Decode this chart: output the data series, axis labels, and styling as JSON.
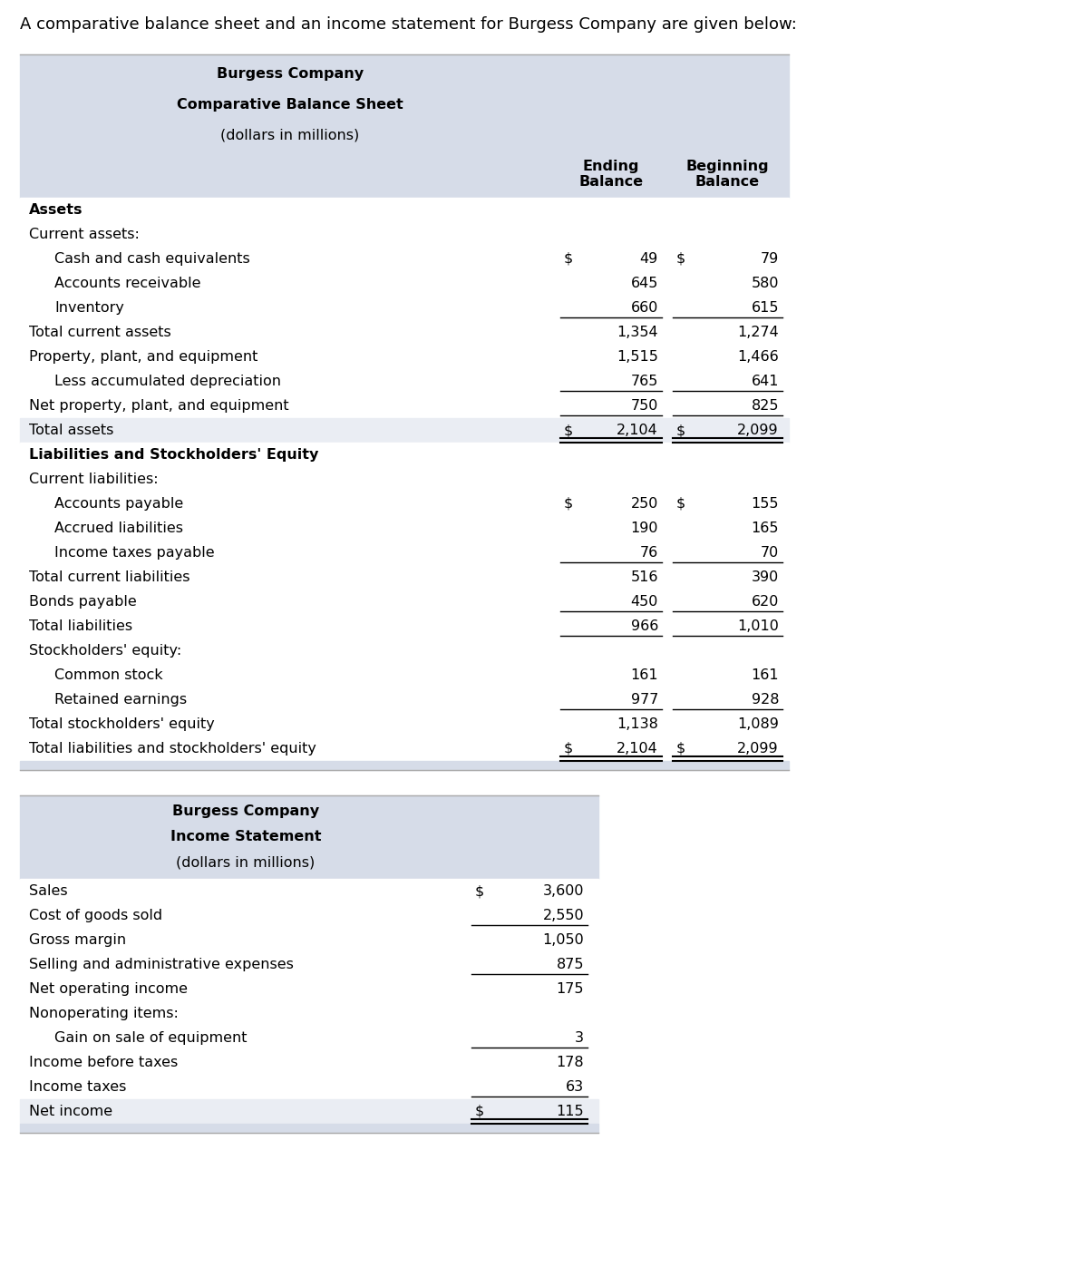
{
  "intro_text": "A comparative balance sheet and an income statement for Burgess Company are given below:",
  "bg_color": "#ffffff",
  "table_bg_color": "#d6dce8",
  "row_bg_light": "#eaedf3",
  "row_bg_white": "#ffffff",
  "bs_title_lines": [
    "Burgess Company",
    "Comparative Balance Sheet",
    "(dollars in millions)"
  ],
  "is_title_lines": [
    "Burgess Company",
    "Income Statement",
    "(dollars in millions)"
  ],
  "bs_rows": [
    {
      "label": "Assets",
      "ending": "",
      "beginning": "",
      "indent": 0,
      "bold": true,
      "bg": "white",
      "underline_after": false,
      "dollar_end": false,
      "dollar_beg": false
    },
    {
      "label": "Current assets:",
      "ending": "",
      "beginning": "",
      "indent": 0,
      "bold": false,
      "bg": "white",
      "underline_after": false,
      "dollar_end": false,
      "dollar_beg": false
    },
    {
      "label": "Cash and cash equivalents",
      "ending": "49",
      "beginning": "79",
      "indent": 1,
      "bold": false,
      "bg": "white",
      "underline_after": false,
      "dollar_end": true,
      "dollar_beg": true
    },
    {
      "label": "Accounts receivable",
      "ending": "645",
      "beginning": "580",
      "indent": 1,
      "bold": false,
      "bg": "white",
      "underline_after": false,
      "dollar_end": false,
      "dollar_beg": false
    },
    {
      "label": "Inventory",
      "ending": "660",
      "beginning": "615",
      "indent": 1,
      "bold": false,
      "bg": "white",
      "underline_after": true,
      "dollar_end": false,
      "dollar_beg": false
    },
    {
      "label": "Total current assets",
      "ending": "1,354",
      "beginning": "1,274",
      "indent": 0,
      "bold": false,
      "bg": "white",
      "underline_after": false,
      "dollar_end": false,
      "dollar_beg": false
    },
    {
      "label": "Property, plant, and equipment",
      "ending": "1,515",
      "beginning": "1,466",
      "indent": 0,
      "bold": false,
      "bg": "white",
      "underline_after": false,
      "dollar_end": false,
      "dollar_beg": false
    },
    {
      "label": "Less accumulated depreciation",
      "ending": "765",
      "beginning": "641",
      "indent": 1,
      "bold": false,
      "bg": "white",
      "underline_after": true,
      "dollar_end": false,
      "dollar_beg": false
    },
    {
      "label": "Net property, plant, and equipment",
      "ending": "750",
      "beginning": "825",
      "indent": 0,
      "bold": false,
      "bg": "white",
      "underline_after": true,
      "dollar_end": false,
      "dollar_beg": false
    },
    {
      "label": "Total assets",
      "ending": "$ 2,104",
      "beginning": "$ 2,099",
      "indent": 0,
      "bold": false,
      "bg": "light",
      "underline_after": false,
      "dollar_end": false,
      "dollar_beg": false,
      "double_under": true
    },
    {
      "label": "Liabilities and Stockholders' Equity",
      "ending": "",
      "beginning": "",
      "indent": 0,
      "bold": true,
      "bg": "white",
      "underline_after": false,
      "dollar_end": false,
      "dollar_beg": false
    },
    {
      "label": "Current liabilities:",
      "ending": "",
      "beginning": "",
      "indent": 0,
      "bold": false,
      "bg": "white",
      "underline_after": false,
      "dollar_end": false,
      "dollar_beg": false
    },
    {
      "label": "Accounts payable",
      "ending": "250",
      "beginning": "155",
      "indent": 1,
      "bold": false,
      "bg": "white",
      "underline_after": false,
      "dollar_end": true,
      "dollar_beg": true
    },
    {
      "label": "Accrued liabilities",
      "ending": "190",
      "beginning": "165",
      "indent": 1,
      "bold": false,
      "bg": "white",
      "underline_after": false,
      "dollar_end": false,
      "dollar_beg": false
    },
    {
      "label": "Income taxes payable",
      "ending": "76",
      "beginning": "70",
      "indent": 1,
      "bold": false,
      "bg": "white",
      "underline_after": true,
      "dollar_end": false,
      "dollar_beg": false
    },
    {
      "label": "Total current liabilities",
      "ending": "516",
      "beginning": "390",
      "indent": 0,
      "bold": false,
      "bg": "white",
      "underline_after": false,
      "dollar_end": false,
      "dollar_beg": false
    },
    {
      "label": "Bonds payable",
      "ending": "450",
      "beginning": "620",
      "indent": 0,
      "bold": false,
      "bg": "white",
      "underline_after": true,
      "dollar_end": false,
      "dollar_beg": false
    },
    {
      "label": "Total liabilities",
      "ending": "966",
      "beginning": "1,010",
      "indent": 0,
      "bold": false,
      "bg": "white",
      "underline_after": true,
      "dollar_end": false,
      "dollar_beg": false
    },
    {
      "label": "Stockholders' equity:",
      "ending": "",
      "beginning": "",
      "indent": 0,
      "bold": false,
      "bg": "white",
      "underline_after": false,
      "dollar_end": false,
      "dollar_beg": false
    },
    {
      "label": "Common stock",
      "ending": "161",
      "beginning": "161",
      "indent": 1,
      "bold": false,
      "bg": "white",
      "underline_after": false,
      "dollar_end": false,
      "dollar_beg": false
    },
    {
      "label": "Retained earnings",
      "ending": "977",
      "beginning": "928",
      "indent": 1,
      "bold": false,
      "bg": "white",
      "underline_after": true,
      "dollar_end": false,
      "dollar_beg": false
    },
    {
      "label": "Total stockholders' equity",
      "ending": "1,138",
      "beginning": "1,089",
      "indent": 0,
      "bold": false,
      "bg": "white",
      "underline_after": false,
      "dollar_end": false,
      "dollar_beg": false
    },
    {
      "label": "Total liabilities and stockholders' equity",
      "ending": "$ 2,104",
      "beginning": "$ 2,099",
      "indent": 0,
      "bold": false,
      "bg": "white",
      "underline_after": false,
      "dollar_end": false,
      "dollar_beg": false,
      "double_under": true
    }
  ],
  "is_rows": [
    {
      "label": "Sales",
      "value": "3,600",
      "indent": 0,
      "bold": false,
      "bg": "white",
      "underline_after": false,
      "dollar": true
    },
    {
      "label": "Cost of goods sold",
      "value": "2,550",
      "indent": 0,
      "bold": false,
      "bg": "white",
      "underline_after": true,
      "dollar": false
    },
    {
      "label": "Gross margin",
      "value": "1,050",
      "indent": 0,
      "bold": false,
      "bg": "white",
      "underline_after": false,
      "dollar": false
    },
    {
      "label": "Selling and administrative expenses",
      "value": "875",
      "indent": 0,
      "bold": false,
      "bg": "white",
      "underline_after": true,
      "dollar": false
    },
    {
      "label": "Net operating income",
      "value": "175",
      "indent": 0,
      "bold": false,
      "bg": "white",
      "underline_after": false,
      "dollar": false
    },
    {
      "label": "Nonoperating items:",
      "value": "",
      "indent": 0,
      "bold": false,
      "bg": "white",
      "underline_after": false,
      "dollar": false
    },
    {
      "label": "Gain on sale of equipment",
      "value": "3",
      "indent": 1,
      "bold": false,
      "bg": "white",
      "underline_after": true,
      "dollar": false
    },
    {
      "label": "Income before taxes",
      "value": "178",
      "indent": 0,
      "bold": false,
      "bg": "white",
      "underline_after": false,
      "dollar": false
    },
    {
      "label": "Income taxes",
      "value": "63",
      "indent": 0,
      "bold": false,
      "bg": "white",
      "underline_after": true,
      "dollar": false
    },
    {
      "label": "Net income",
      "value": "115",
      "indent": 0,
      "bold": false,
      "bg": "light",
      "underline_after": false,
      "dollar": true,
      "double_under": true
    }
  ],
  "font_size": 11.5,
  "title_font_size": 11.5
}
